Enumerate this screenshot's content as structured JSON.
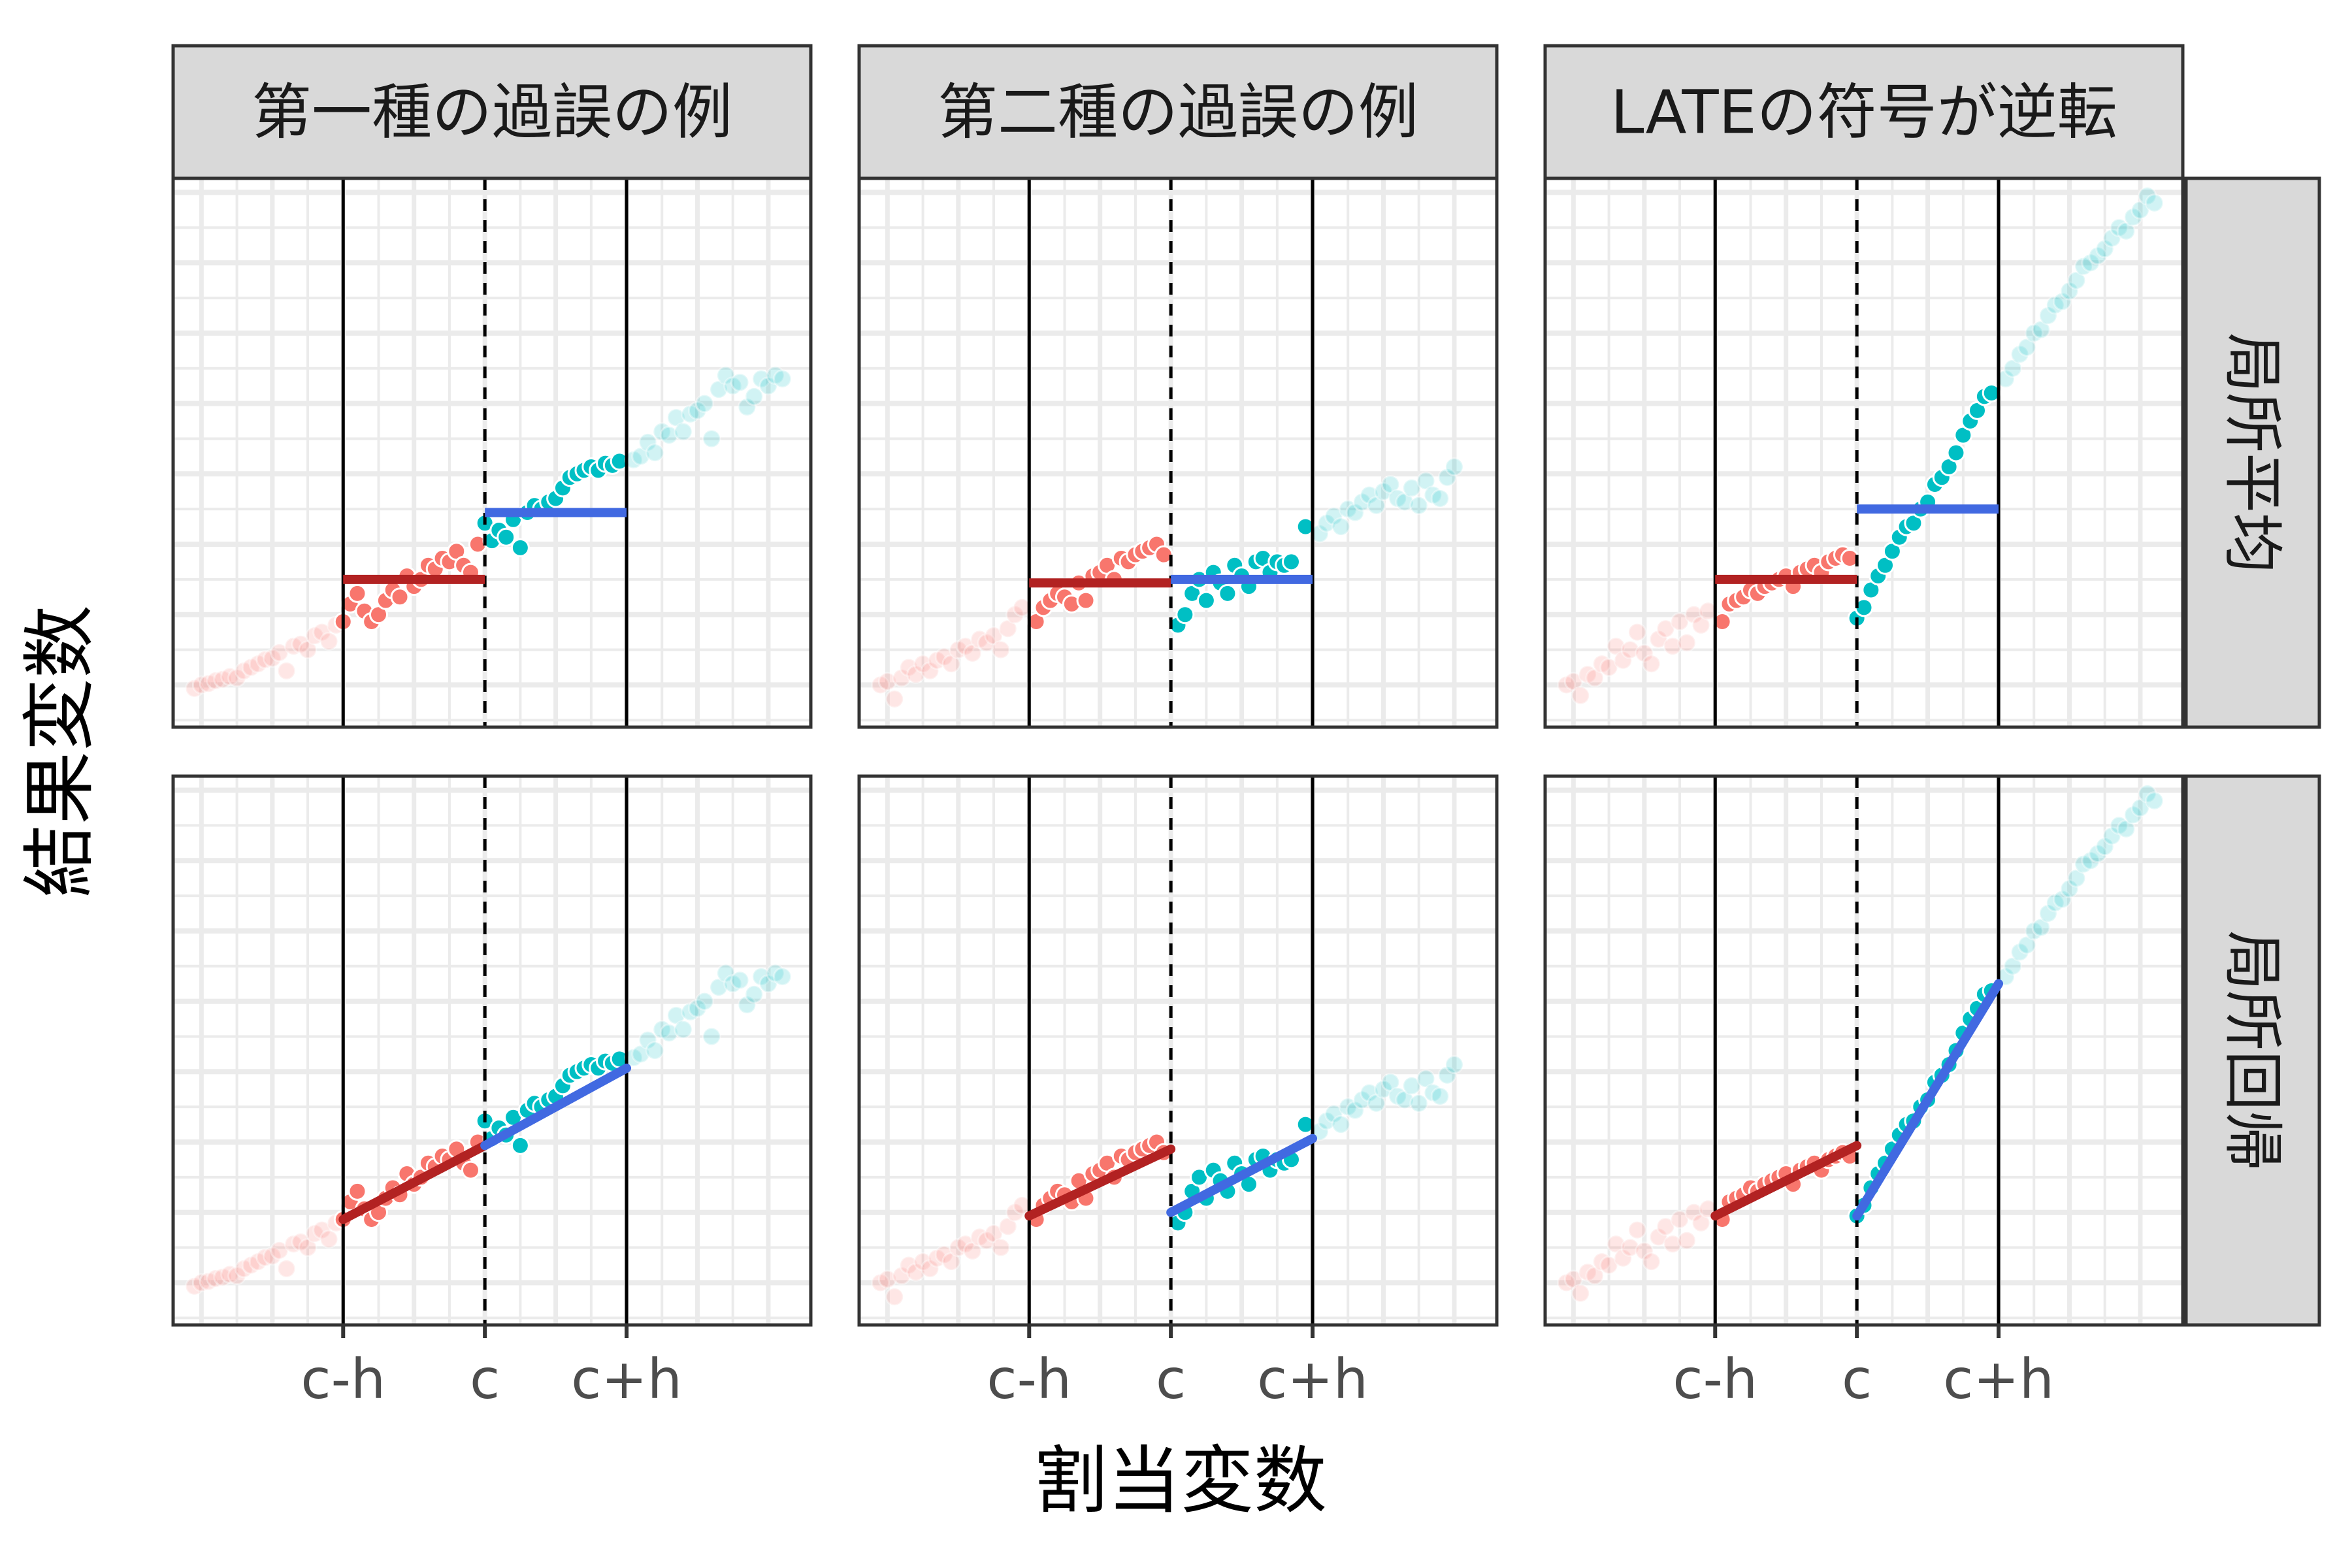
{
  "chart_data": {
    "type": "scatter",
    "xlabel": "割当変数",
    "ylabel": "結果変数",
    "x_ticks": [
      {
        "label": "c-h",
        "value": 9
      },
      {
        "label": "c",
        "value": 10
      },
      {
        "label": "c+h",
        "value": 11
      }
    ],
    "xlim": [
      7.8,
      12.3
    ],
    "ylim": [
      -0.6,
      7.2
    ],
    "cutoff": 10,
    "bandwidth": 1,
    "column_facets": [
      "第一種の過誤の例",
      "第二種の過誤の例",
      "LATEの符号が逆転"
    ],
    "row_facets": [
      "局所平均",
      "局所回帰"
    ],
    "colors": {
      "left_points": "#F8766D",
      "right_points": "#00BFC4",
      "left_fit": "#B22222",
      "right_fit": "#4169E1",
      "panel_grid": "#EBEBEB",
      "strip_fill": "#D9D9D9"
    },
    "series": [
      {
        "facet_col": "第一種の過誤の例",
        "points": [
          {
            "x": 7.95,
            "y": -0.05
          },
          {
            "x": 8.0,
            "y": 0.0
          },
          {
            "x": 8.05,
            "y": 0.02
          },
          {
            "x": 8.1,
            "y": 0.06
          },
          {
            "x": 8.15,
            "y": 0.08
          },
          {
            "x": 8.2,
            "y": 0.12
          },
          {
            "x": 8.25,
            "y": 0.1
          },
          {
            "x": 8.3,
            "y": 0.2
          },
          {
            "x": 8.35,
            "y": 0.25
          },
          {
            "x": 8.4,
            "y": 0.3
          },
          {
            "x": 8.45,
            "y": 0.36
          },
          {
            "x": 8.5,
            "y": 0.38
          },
          {
            "x": 8.55,
            "y": 0.46
          },
          {
            "x": 8.6,
            "y": 0.2
          },
          {
            "x": 8.65,
            "y": 0.55
          },
          {
            "x": 8.7,
            "y": 0.58
          },
          {
            "x": 8.75,
            "y": 0.5
          },
          {
            "x": 8.8,
            "y": 0.7
          },
          {
            "x": 8.85,
            "y": 0.75
          },
          {
            "x": 8.9,
            "y": 0.62
          },
          {
            "x": 8.95,
            "y": 0.85
          },
          {
            "x": 9.0,
            "y": 0.9
          },
          {
            "x": 9.05,
            "y": 1.15
          },
          {
            "x": 9.1,
            "y": 1.3
          },
          {
            "x": 9.15,
            "y": 1.05
          },
          {
            "x": 9.2,
            "y": 0.9
          },
          {
            "x": 9.25,
            "y": 1.0
          },
          {
            "x": 9.3,
            "y": 1.2
          },
          {
            "x": 9.35,
            "y": 1.35
          },
          {
            "x": 9.4,
            "y": 1.25
          },
          {
            "x": 9.45,
            "y": 1.55
          },
          {
            "x": 9.5,
            "y": 1.4
          },
          {
            "x": 9.55,
            "y": 1.5
          },
          {
            "x": 9.6,
            "y": 1.7
          },
          {
            "x": 9.65,
            "y": 1.65
          },
          {
            "x": 9.7,
            "y": 1.8
          },
          {
            "x": 9.75,
            "y": 1.75
          },
          {
            "x": 9.8,
            "y": 1.9
          },
          {
            "x": 9.85,
            "y": 1.7
          },
          {
            "x": 9.9,
            "y": 1.6
          },
          {
            "x": 9.95,
            "y": 2.0
          },
          {
            "x": 10.0,
            "y": 2.3
          },
          {
            "x": 10.05,
            "y": 2.05
          },
          {
            "x": 10.1,
            "y": 2.2
          },
          {
            "x": 10.15,
            "y": 2.1
          },
          {
            "x": 10.2,
            "y": 2.35
          },
          {
            "x": 10.25,
            "y": 1.95
          },
          {
            "x": 10.3,
            "y": 2.45
          },
          {
            "x": 10.35,
            "y": 2.55
          },
          {
            "x": 10.4,
            "y": 2.5
          },
          {
            "x": 10.45,
            "y": 2.6
          },
          {
            "x": 10.5,
            "y": 2.65
          },
          {
            "x": 10.55,
            "y": 2.8
          },
          {
            "x": 10.6,
            "y": 2.95
          },
          {
            "x": 10.65,
            "y": 3.0
          },
          {
            "x": 10.7,
            "y": 3.05
          },
          {
            "x": 10.75,
            "y": 3.1
          },
          {
            "x": 10.8,
            "y": 3.05
          },
          {
            "x": 10.85,
            "y": 3.15
          },
          {
            "x": 10.9,
            "y": 3.12
          },
          {
            "x": 10.95,
            "y": 3.18
          },
          {
            "x": 11.05,
            "y": 3.2
          },
          {
            "x": 11.1,
            "y": 3.25
          },
          {
            "x": 11.15,
            "y": 3.45
          },
          {
            "x": 11.2,
            "y": 3.3
          },
          {
            "x": 11.25,
            "y": 3.6
          },
          {
            "x": 11.3,
            "y": 3.55
          },
          {
            "x": 11.35,
            "y": 3.8
          },
          {
            "x": 11.4,
            "y": 3.6
          },
          {
            "x": 11.45,
            "y": 3.85
          },
          {
            "x": 11.5,
            "y": 3.9
          },
          {
            "x": 11.55,
            "y": 4.0
          },
          {
            "x": 11.6,
            "y": 3.5
          },
          {
            "x": 11.65,
            "y": 4.2
          },
          {
            "x": 11.7,
            "y": 4.4
          },
          {
            "x": 11.75,
            "y": 4.25
          },
          {
            "x": 11.8,
            "y": 4.3
          },
          {
            "x": 11.85,
            "y": 3.95
          },
          {
            "x": 11.9,
            "y": 4.1
          },
          {
            "x": 11.95,
            "y": 4.35
          },
          {
            "x": 12.0,
            "y": 4.25
          },
          {
            "x": 12.05,
            "y": 4.4
          },
          {
            "x": 12.1,
            "y": 4.35
          }
        ],
        "local_mean": {
          "left": 1.5,
          "right": 2.45
        },
        "local_regression": {
          "left": [
            0.9,
            1.95
          ],
          "right": [
            1.95,
            3.05
          ]
        }
      },
      {
        "facet_col": "第二種の過誤の例",
        "points": [
          {
            "x": 7.95,
            "y": 0.0
          },
          {
            "x": 8.0,
            "y": 0.05
          },
          {
            "x": 8.05,
            "y": -0.2
          },
          {
            "x": 8.1,
            "y": 0.1
          },
          {
            "x": 8.15,
            "y": 0.25
          },
          {
            "x": 8.2,
            "y": 0.15
          },
          {
            "x": 8.25,
            "y": 0.3
          },
          {
            "x": 8.3,
            "y": 0.2
          },
          {
            "x": 8.35,
            "y": 0.35
          },
          {
            "x": 8.4,
            "y": 0.4
          },
          {
            "x": 8.45,
            "y": 0.3
          },
          {
            "x": 8.5,
            "y": 0.5
          },
          {
            "x": 8.55,
            "y": 0.55
          },
          {
            "x": 8.6,
            "y": 0.45
          },
          {
            "x": 8.65,
            "y": 0.65
          },
          {
            "x": 8.7,
            "y": 0.6
          },
          {
            "x": 8.75,
            "y": 0.7
          },
          {
            "x": 8.8,
            "y": 0.5
          },
          {
            "x": 8.85,
            "y": 0.8
          },
          {
            "x": 8.9,
            "y": 1.0
          },
          {
            "x": 8.95,
            "y": 1.1
          },
          {
            "x": 9.05,
            "y": 0.9
          },
          {
            "x": 9.1,
            "y": 1.1
          },
          {
            "x": 9.15,
            "y": 1.2
          },
          {
            "x": 9.2,
            "y": 1.3
          },
          {
            "x": 9.25,
            "y": 1.25
          },
          {
            "x": 9.3,
            "y": 1.15
          },
          {
            "x": 9.35,
            "y": 1.45
          },
          {
            "x": 9.4,
            "y": 1.2
          },
          {
            "x": 9.45,
            "y": 1.55
          },
          {
            "x": 9.5,
            "y": 1.6
          },
          {
            "x": 9.55,
            "y": 1.7
          },
          {
            "x": 9.6,
            "y": 1.5
          },
          {
            "x": 9.65,
            "y": 1.8
          },
          {
            "x": 9.7,
            "y": 1.75
          },
          {
            "x": 9.75,
            "y": 1.85
          },
          {
            "x": 9.8,
            "y": 1.9
          },
          {
            "x": 9.85,
            "y": 1.95
          },
          {
            "x": 9.9,
            "y": 2.0
          },
          {
            "x": 9.95,
            "y": 1.85
          },
          {
            "x": 10.05,
            "y": 0.85
          },
          {
            "x": 10.1,
            "y": 1.0
          },
          {
            "x": 10.15,
            "y": 1.3
          },
          {
            "x": 10.2,
            "y": 1.5
          },
          {
            "x": 10.25,
            "y": 1.2
          },
          {
            "x": 10.3,
            "y": 1.6
          },
          {
            "x": 10.35,
            "y": 1.45
          },
          {
            "x": 10.4,
            "y": 1.3
          },
          {
            "x": 10.45,
            "y": 1.7
          },
          {
            "x": 10.5,
            "y": 1.55
          },
          {
            "x": 10.55,
            "y": 1.4
          },
          {
            "x": 10.6,
            "y": 1.75
          },
          {
            "x": 10.65,
            "y": 1.8
          },
          {
            "x": 10.7,
            "y": 1.6
          },
          {
            "x": 10.75,
            "y": 1.75
          },
          {
            "x": 10.8,
            "y": 1.7
          },
          {
            "x": 10.85,
            "y": 1.75
          },
          {
            "x": 10.95,
            "y": 2.25
          },
          {
            "x": 11.05,
            "y": 2.15
          },
          {
            "x": 11.1,
            "y": 2.3
          },
          {
            "x": 11.15,
            "y": 2.4
          },
          {
            "x": 11.2,
            "y": 2.25
          },
          {
            "x": 11.25,
            "y": 2.5
          },
          {
            "x": 11.3,
            "y": 2.45
          },
          {
            "x": 11.35,
            "y": 2.6
          },
          {
            "x": 11.4,
            "y": 2.7
          },
          {
            "x": 11.45,
            "y": 2.55
          },
          {
            "x": 11.5,
            "y": 2.75
          },
          {
            "x": 11.55,
            "y": 2.85
          },
          {
            "x": 11.6,
            "y": 2.65
          },
          {
            "x": 11.65,
            "y": 2.6
          },
          {
            "x": 11.7,
            "y": 2.8
          },
          {
            "x": 11.75,
            "y": 2.55
          },
          {
            "x": 11.8,
            "y": 2.9
          },
          {
            "x": 11.85,
            "y": 2.7
          },
          {
            "x": 11.9,
            "y": 2.65
          },
          {
            "x": 11.95,
            "y": 2.95
          },
          {
            "x": 12.0,
            "y": 3.1
          }
        ],
        "local_mean": {
          "left": 1.45,
          "right": 1.5
        },
        "local_regression": {
          "left": [
            0.95,
            1.9
          ],
          "right": [
            1.0,
            2.05
          ]
        }
      },
      {
        "facet_col": "LATEの符号が逆転",
        "points": [
          {
            "x": 7.95,
            "y": 0.0
          },
          {
            "x": 8.0,
            "y": 0.05
          },
          {
            "x": 8.05,
            "y": -0.15
          },
          {
            "x": 8.1,
            "y": 0.15
          },
          {
            "x": 8.15,
            "y": 0.1
          },
          {
            "x": 8.2,
            "y": 0.3
          },
          {
            "x": 8.25,
            "y": 0.25
          },
          {
            "x": 8.3,
            "y": 0.55
          },
          {
            "x": 8.35,
            "y": 0.35
          },
          {
            "x": 8.4,
            "y": 0.5
          },
          {
            "x": 8.45,
            "y": 0.75
          },
          {
            "x": 8.5,
            "y": 0.45
          },
          {
            "x": 8.55,
            "y": 0.3
          },
          {
            "x": 8.6,
            "y": 0.65
          },
          {
            "x": 8.65,
            "y": 0.8
          },
          {
            "x": 8.7,
            "y": 0.55
          },
          {
            "x": 8.75,
            "y": 0.9
          },
          {
            "x": 8.8,
            "y": 0.6
          },
          {
            "x": 8.85,
            "y": 1.0
          },
          {
            "x": 8.9,
            "y": 0.85
          },
          {
            "x": 8.95,
            "y": 1.05
          },
          {
            "x": 9.05,
            "y": 0.9
          },
          {
            "x": 9.1,
            "y": 1.15
          },
          {
            "x": 9.15,
            "y": 1.2
          },
          {
            "x": 9.2,
            "y": 1.25
          },
          {
            "x": 9.25,
            "y": 1.35
          },
          {
            "x": 9.3,
            "y": 1.3
          },
          {
            "x": 9.35,
            "y": 1.4
          },
          {
            "x": 9.4,
            "y": 1.45
          },
          {
            "x": 9.45,
            "y": 1.5
          },
          {
            "x": 9.5,
            "y": 1.55
          },
          {
            "x": 9.55,
            "y": 1.4
          },
          {
            "x": 9.6,
            "y": 1.6
          },
          {
            "x": 9.65,
            "y": 1.65
          },
          {
            "x": 9.7,
            "y": 1.7
          },
          {
            "x": 9.75,
            "y": 1.6
          },
          {
            "x": 9.8,
            "y": 1.75
          },
          {
            "x": 9.85,
            "y": 1.8
          },
          {
            "x": 9.9,
            "y": 1.85
          },
          {
            "x": 9.95,
            "y": 1.8
          },
          {
            "x": 10.0,
            "y": 0.95
          },
          {
            "x": 10.05,
            "y": 1.1
          },
          {
            "x": 10.1,
            "y": 1.35
          },
          {
            "x": 10.15,
            "y": 1.55
          },
          {
            "x": 10.2,
            "y": 1.7
          },
          {
            "x": 10.25,
            "y": 1.9
          },
          {
            "x": 10.3,
            "y": 2.1
          },
          {
            "x": 10.35,
            "y": 2.25
          },
          {
            "x": 10.4,
            "y": 2.3
          },
          {
            "x": 10.45,
            "y": 2.5
          },
          {
            "x": 10.5,
            "y": 2.6
          },
          {
            "x": 10.55,
            "y": 2.85
          },
          {
            "x": 10.6,
            "y": 2.95
          },
          {
            "x": 10.65,
            "y": 3.1
          },
          {
            "x": 10.7,
            "y": 3.3
          },
          {
            "x": 10.75,
            "y": 3.55
          },
          {
            "x": 10.8,
            "y": 3.75
          },
          {
            "x": 10.85,
            "y": 3.9
          },
          {
            "x": 10.9,
            "y": 4.1
          },
          {
            "x": 10.95,
            "y": 4.15
          },
          {
            "x": 11.05,
            "y": 4.35
          },
          {
            "x": 11.1,
            "y": 4.5
          },
          {
            "x": 11.15,
            "y": 4.7
          },
          {
            "x": 11.2,
            "y": 4.8
          },
          {
            "x": 11.25,
            "y": 5.0
          },
          {
            "x": 11.3,
            "y": 5.05
          },
          {
            "x": 11.35,
            "y": 5.25
          },
          {
            "x": 11.4,
            "y": 5.4
          },
          {
            "x": 11.45,
            "y": 5.45
          },
          {
            "x": 11.5,
            "y": 5.6
          },
          {
            "x": 11.55,
            "y": 5.75
          },
          {
            "x": 11.6,
            "y": 5.95
          },
          {
            "x": 11.65,
            "y": 6.0
          },
          {
            "x": 11.7,
            "y": 6.1
          },
          {
            "x": 11.75,
            "y": 6.2
          },
          {
            "x": 11.8,
            "y": 6.35
          },
          {
            "x": 11.85,
            "y": 6.5
          },
          {
            "x": 11.9,
            "y": 6.45
          },
          {
            "x": 11.95,
            "y": 6.65
          },
          {
            "x": 12.0,
            "y": 6.75
          },
          {
            "x": 12.05,
            "y": 6.95
          },
          {
            "x": 12.1,
            "y": 6.85
          }
        ],
        "local_mean": {
          "left": 1.5,
          "right": 2.5
        },
        "local_regression": {
          "left": [
            0.95,
            1.95
          ],
          "right": [
            0.95,
            4.25
          ]
        }
      }
    ]
  }
}
